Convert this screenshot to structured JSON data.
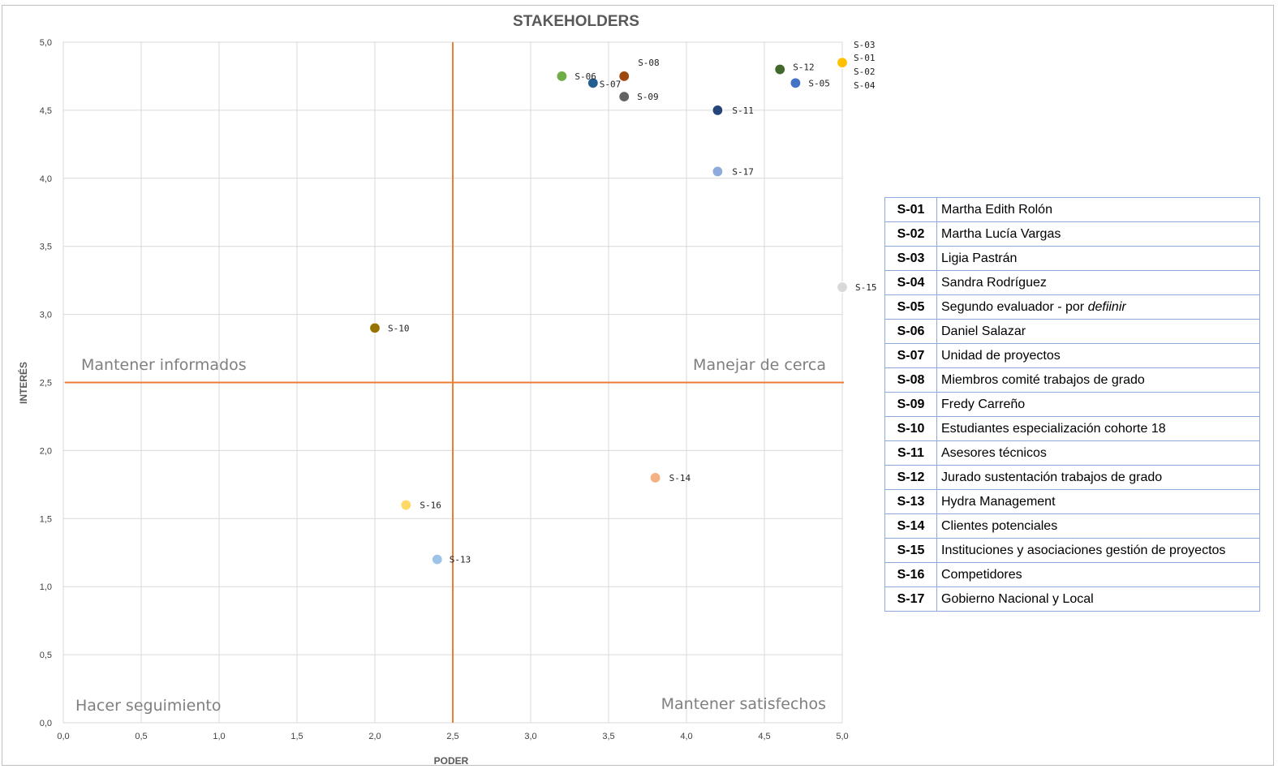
{
  "chart_data": {
    "type": "scatter",
    "title": "STAKEHOLDERS",
    "xlabel": "PODER",
    "ylabel": "INTERÉS",
    "xlim": [
      0,
      5
    ],
    "ylim": [
      0,
      5
    ],
    "x_ticks": [
      "0,0",
      "0,5",
      "1,0",
      "1,5",
      "2,0",
      "2,5",
      "3,0",
      "3,5",
      "4,0",
      "4,5",
      "5,0"
    ],
    "y_ticks": [
      "0,0",
      "0,5",
      "1,0",
      "1,5",
      "2,0",
      "2,5",
      "3,0",
      "3,5",
      "4,0",
      "4,5",
      "5,0"
    ],
    "grid": true,
    "quadrant_lines": {
      "x": 2.5,
      "y": 2.5,
      "color": "#ed7d31"
    },
    "quadrant_labels": {
      "top_left": "Mantener informados",
      "top_right": "Manejar de cerca",
      "bottom_left": "Hacer seguimiento",
      "bottom_right": "Mantener satisfechos"
    },
    "points": [
      {
        "id": "S-03",
        "x": 5.0,
        "y": 4.85,
        "color": "#4472c4"
      },
      {
        "id": "S-01",
        "x": 5.0,
        "y": 4.85,
        "color": "#4472c4"
      },
      {
        "id": "S-02",
        "x": 5.0,
        "y": 4.85,
        "color": "#4472c4"
      },
      {
        "id": "S-04",
        "x": 5.0,
        "y": 4.85,
        "color": "#ffc000"
      },
      {
        "id": "S-05",
        "x": 4.7,
        "y": 4.7,
        "color": "#4472c4"
      },
      {
        "id": "S-06",
        "x": 3.2,
        "y": 4.75,
        "color": "#70ad47"
      },
      {
        "id": "S-07",
        "x": 3.4,
        "y": 4.7,
        "color": "#255e91"
      },
      {
        "id": "S-08",
        "x": 3.6,
        "y": 4.75,
        "color": "#9e480e"
      },
      {
        "id": "S-09",
        "x": 3.6,
        "y": 4.6,
        "color": "#636363"
      },
      {
        "id": "S-10",
        "x": 2.0,
        "y": 2.9,
        "color": "#997300"
      },
      {
        "id": "S-11",
        "x": 4.2,
        "y": 4.5,
        "color": "#264478"
      },
      {
        "id": "S-12",
        "x": 4.6,
        "y": 4.8,
        "color": "#43682b"
      },
      {
        "id": "S-13",
        "x": 2.4,
        "y": 1.2,
        "color": "#9dc3e6"
      },
      {
        "id": "S-14",
        "x": 3.8,
        "y": 1.8,
        "color": "#f4b183"
      },
      {
        "id": "S-15",
        "x": 5.0,
        "y": 3.2,
        "color": "#d9d9d9"
      },
      {
        "id": "S-16",
        "x": 2.2,
        "y": 1.6,
        "color": "#ffd966"
      },
      {
        "id": "S-17",
        "x": 4.2,
        "y": 4.05,
        "color": "#8faadc"
      }
    ]
  },
  "legend_table": [
    {
      "code": "S-01",
      "name": "Martha Edith Rolón"
    },
    {
      "code": "S-02",
      "name": "Martha Lucía Vargas"
    },
    {
      "code": "S-03",
      "name": "Ligia Pastrán"
    },
    {
      "code": "S-04",
      "name": "Sandra Rodríguez"
    },
    {
      "code": "S-05",
      "name": "Segundo evaluador - por",
      "name_italic": "defiinir"
    },
    {
      "code": "S-06",
      "name": "Daniel Salazar"
    },
    {
      "code": "S-07",
      "name": "Unidad de proyectos"
    },
    {
      "code": "S-08",
      "name": "Miembros comité trabajos de grado"
    },
    {
      "code": "S-09",
      "name": "Fredy Carreño"
    },
    {
      "code": "S-10",
      "name": "Estudiantes especialización cohorte 18"
    },
    {
      "code": "S-11",
      "name": "Asesores técnicos"
    },
    {
      "code": "S-12",
      "name": "Jurado sustentación trabajos de grado"
    },
    {
      "code": "S-13",
      "name": "Hydra Management"
    },
    {
      "code": "S-14",
      "name": "Clientes potenciales"
    },
    {
      "code": "S-15",
      "name": "Instituciones y asociaciones gestión de proyectos"
    },
    {
      "code": "S-16",
      "name": "Competidores"
    },
    {
      "code": "S-17",
      "name": "Gobierno Nacional y Local"
    }
  ]
}
